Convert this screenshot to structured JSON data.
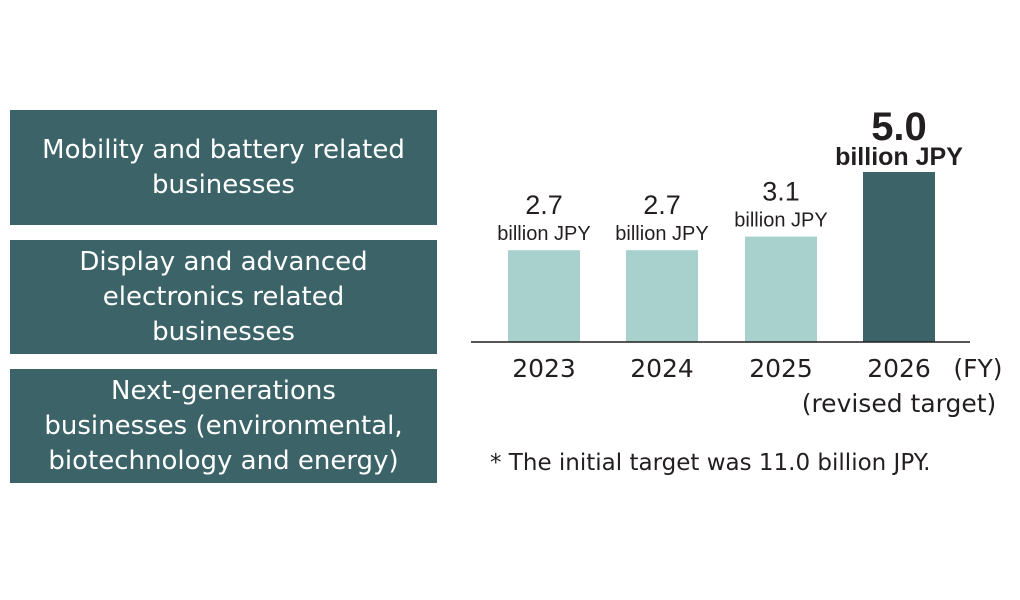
{
  "colors": {
    "box_bg": "#3c6468",
    "bar_light": "#a8d0cd",
    "bar_highlight": "#3c6468",
    "text": "#231f20"
  },
  "categories": [
    {
      "label": "Mobility and battery related\nbusinesses"
    },
    {
      "label": "Display and advanced\nelectronics related\nbusinesses"
    },
    {
      "label": "Next-generations\nbusinesses (environmental,\nbiotechnology and energy)"
    }
  ],
  "chart_data": {
    "type": "bar",
    "categories": [
      "2023",
      "2024",
      "2025",
      "2026"
    ],
    "category_sublabels": [
      "",
      "",
      "",
      "(revised target)"
    ],
    "values": [
      2.7,
      2.7,
      3.1,
      5.0
    ],
    "value_labels": [
      "2.7",
      "2.7",
      "3.1",
      "5.0"
    ],
    "unit_label": "billion JPY",
    "highlight_index": 3,
    "x_unit": "(FY)",
    "ylim": [
      0,
      5.0
    ],
    "grid": false,
    "legend": "none"
  },
  "footnote": "* The initial target was 11.0 billion JPY."
}
